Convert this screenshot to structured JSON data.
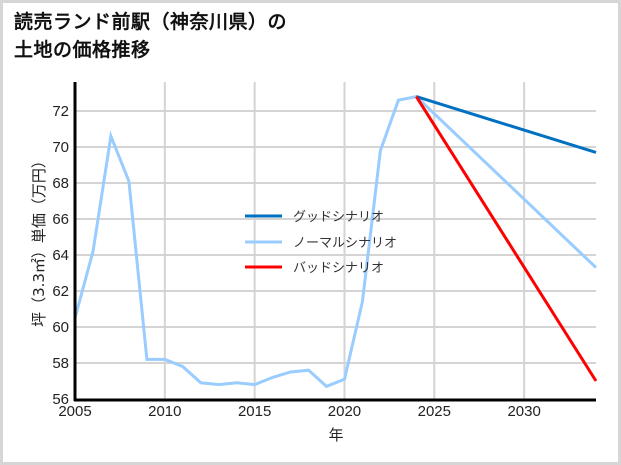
{
  "chart_data": {
    "type": "line",
    "title": "読売ランド前駅（神奈川県）の土地の価格推移",
    "title_lines": [
      "読売ランド前駅（神奈川県）の",
      "土地の価格推移"
    ],
    "xlabel": "年",
    "ylabel": "坪（3.3㎡）単価（万円）",
    "xlim": [
      2005,
      2034
    ],
    "ylim": [
      56,
      73.5
    ],
    "xticks": [
      2005,
      2010,
      2015,
      2020,
      2025,
      2030
    ],
    "yticks": [
      56,
      58,
      60,
      62,
      64,
      66,
      68,
      70,
      72
    ],
    "grid": true,
    "legend_position": "center",
    "series": [
      {
        "name": "グッドシナリオ",
        "color": "#0070c0",
        "x": [
          2024,
          2034
        ],
        "values": [
          72.8,
          69.7
        ]
      },
      {
        "name": "ノーマルシナリオ",
        "color": "#99ccff",
        "x": [
          2005,
          2006,
          2007,
          2008,
          2009,
          2010,
          2011,
          2012,
          2013,
          2014,
          2015,
          2016,
          2017,
          2018,
          2019,
          2020,
          2021,
          2022,
          2023,
          2024,
          2034
        ],
        "values": [
          60.5,
          64.2,
          70.6,
          68.1,
          58.2,
          58.2,
          57.8,
          56.9,
          56.8,
          56.9,
          56.8,
          57.2,
          57.5,
          57.6,
          56.7,
          57.1,
          61.4,
          69.8,
          72.6,
          72.8,
          63.3
        ]
      },
      {
        "name": "バッドシナリオ",
        "color": "#ff0000",
        "x": [
          2024,
          2034
        ],
        "values": [
          72.8,
          57.0
        ]
      }
    ]
  }
}
